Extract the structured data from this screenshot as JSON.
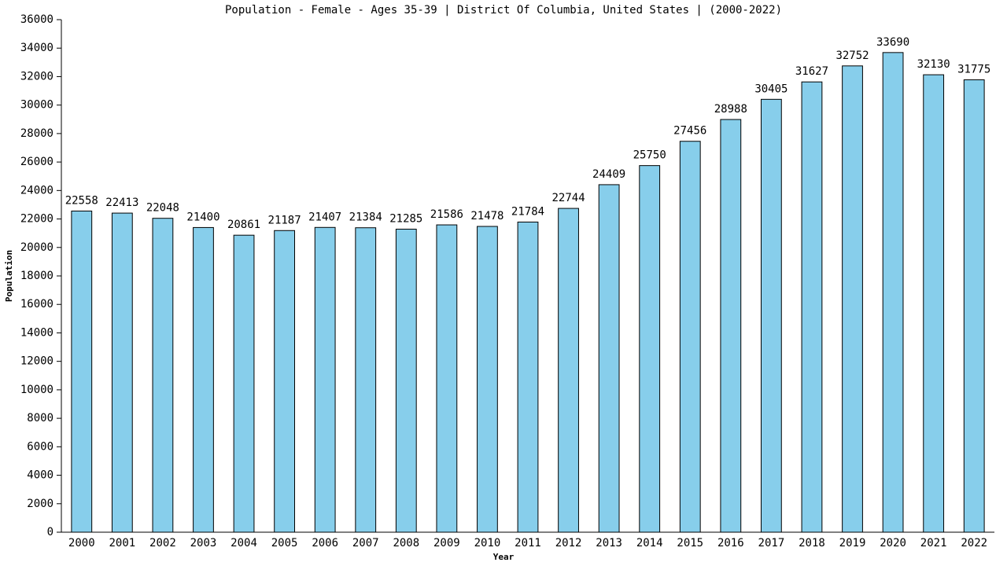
{
  "chart_data": {
    "type": "bar",
    "title": "Population - Female - Ages 35-39 | District Of Columbia, United States |  (2000-2022)",
    "x_label": "Year",
    "y_label": "Population",
    "categories": [
      "2000",
      "2001",
      "2002",
      "2003",
      "2004",
      "2005",
      "2006",
      "2007",
      "2008",
      "2009",
      "2010",
      "2011",
      "2012",
      "2013",
      "2014",
      "2015",
      "2016",
      "2017",
      "2018",
      "2019",
      "2020",
      "2021",
      "2022"
    ],
    "values": [
      22558,
      22413,
      22048,
      21400,
      20861,
      21187,
      21407,
      21384,
      21285,
      21586,
      21478,
      21784,
      22744,
      24409,
      25750,
      27456,
      28988,
      30405,
      31627,
      32752,
      33690,
      32130,
      31775
    ],
    "color": "#87ceeb",
    "ylim": [
      0,
      36000
    ],
    "yticks": [
      0,
      2000,
      4000,
      6000,
      8000,
      10000,
      12000,
      14000,
      16000,
      18000,
      20000,
      22000,
      24000,
      26000,
      28000,
      30000,
      32000,
      34000,
      36000
    ],
    "grid": false
  }
}
